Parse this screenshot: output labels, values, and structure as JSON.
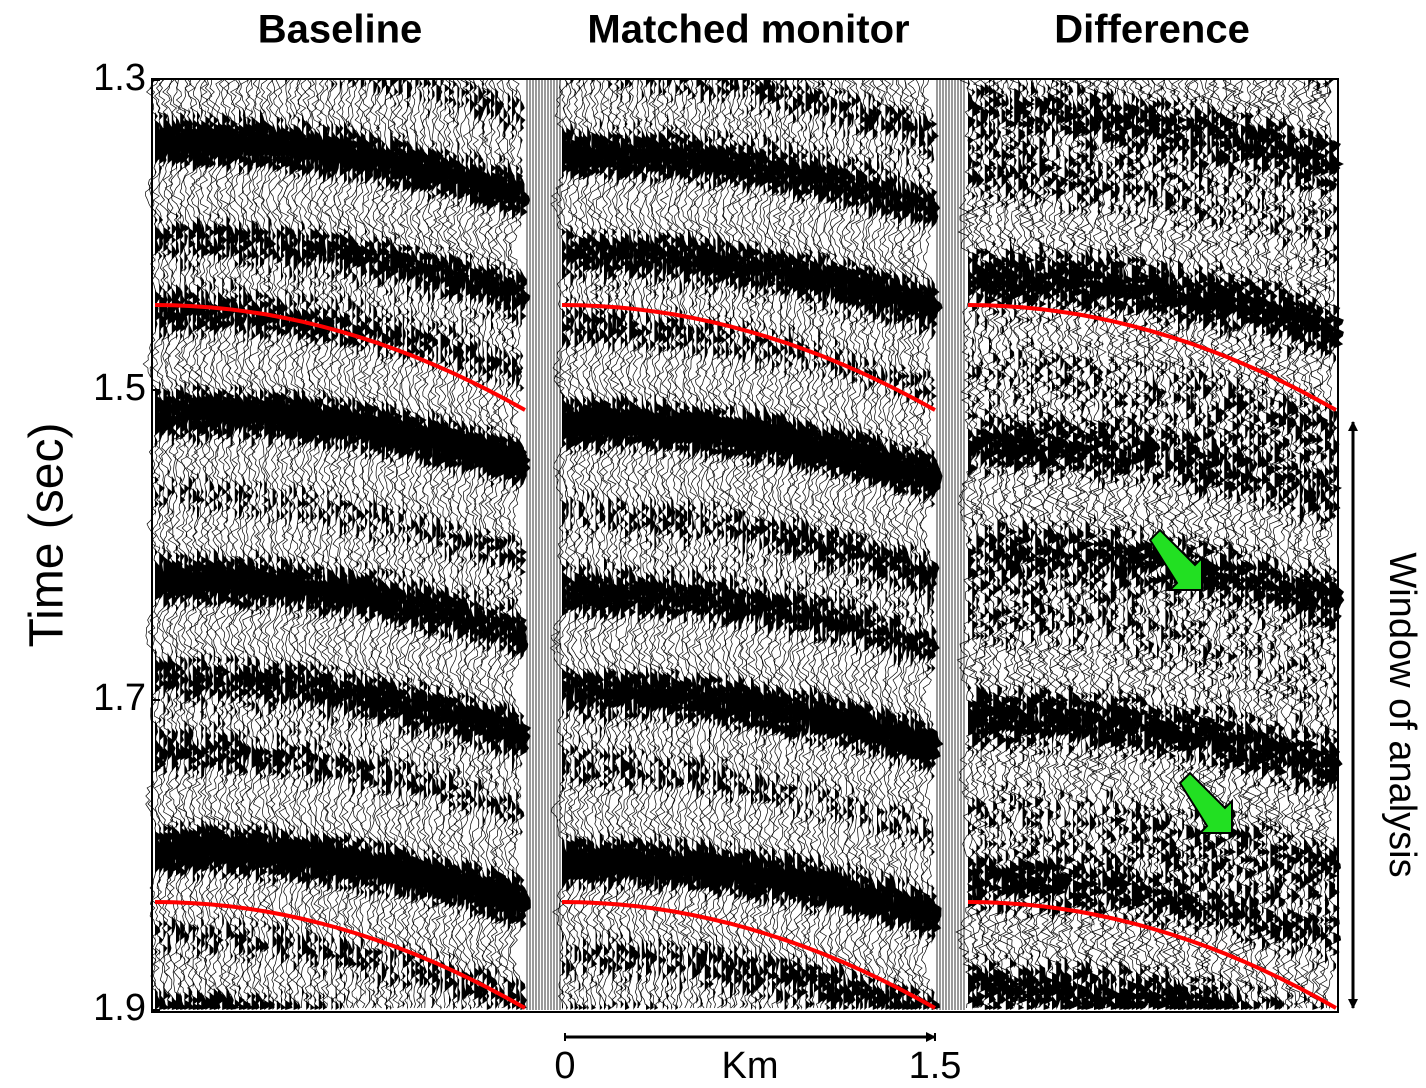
{
  "chart_data": {
    "type": "seismic",
    "panels": [
      "Baseline",
      "Matched monitor",
      "Difference"
    ],
    "y_label": "Time (sec)",
    "ylim": [
      1.3,
      1.9
    ],
    "yticks": [
      1.3,
      1.5,
      1.7,
      1.9
    ],
    "x_label": "Km",
    "xlim": [
      0,
      1.5
    ],
    "xticks": [
      0,
      1.5
    ],
    "annotation": "Window of analysis"
  }
}
